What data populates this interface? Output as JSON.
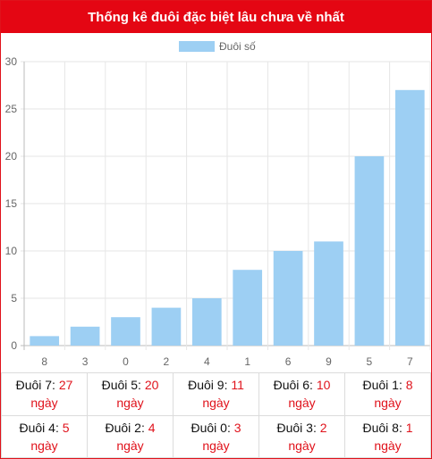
{
  "header": {
    "title": "Thống kê đuôi đặc biệt lâu chưa về nhất"
  },
  "colors": {
    "header_bg": "#e40613",
    "bar": "#9dcff3",
    "red": "#e0121b"
  },
  "chart_data": {
    "type": "bar",
    "categories": [
      "8",
      "3",
      "0",
      "2",
      "4",
      "1",
      "6",
      "9",
      "5",
      "7"
    ],
    "series": [
      {
        "name": "Đuôi số",
        "values": [
          1,
          2,
          3,
          4,
          5,
          8,
          10,
          11,
          20,
          27
        ]
      }
    ],
    "ylim": [
      0,
      30
    ],
    "yticks": [
      0,
      5,
      10,
      15,
      20,
      25,
      30
    ],
    "grid": true,
    "legend": "top-center"
  },
  "stats": {
    "unit": "ngày",
    "rows": [
      [
        {
          "label": "Đuôi 7:",
          "value": "27"
        },
        {
          "label": "Đuôi 5:",
          "value": "20"
        },
        {
          "label": "Đuôi 9:",
          "value": "11"
        },
        {
          "label": "Đuôi 6:",
          "value": "10"
        },
        {
          "label": "Đuôi 1:",
          "value": "8"
        }
      ],
      [
        {
          "label": "Đuôi 4:",
          "value": "5"
        },
        {
          "label": "Đuôi 2:",
          "value": "4"
        },
        {
          "label": "Đuôi 0:",
          "value": "3"
        },
        {
          "label": "Đuôi 3:",
          "value": "2"
        },
        {
          "label": "Đuôi 8:",
          "value": "1"
        }
      ]
    ]
  }
}
